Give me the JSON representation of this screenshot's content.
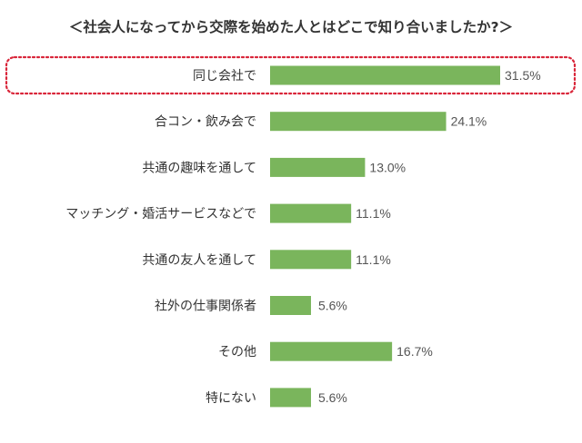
{
  "chart_data": {
    "type": "bar",
    "orientation": "horizontal",
    "title": "＜社会人になってから交際を始めた人とはどこで知り合いましたか?＞",
    "categories": [
      "同じ会社で",
      "合コン・飲み会で",
      "共通の趣味を通して",
      "マッチング・婚活サービスなどで",
      "共通の友人を通して",
      "社外の仕事関係者",
      "その他",
      "特にない"
    ],
    "values": [
      31.5,
      24.1,
      13.0,
      11.1,
      11.1,
      5.6,
      16.7,
      5.6
    ],
    "value_labels": [
      "31.5%",
      "24.1%",
      "13.0%",
      "11.1%",
      "11.1%",
      "5.6%",
      "16.7%",
      "5.6%"
    ],
    "xlim": [
      0,
      31.5
    ],
    "grid": false,
    "highlight_index": 0,
    "colors": {
      "bar": "#7ab55c",
      "highlight_border": "#d9263a"
    }
  }
}
